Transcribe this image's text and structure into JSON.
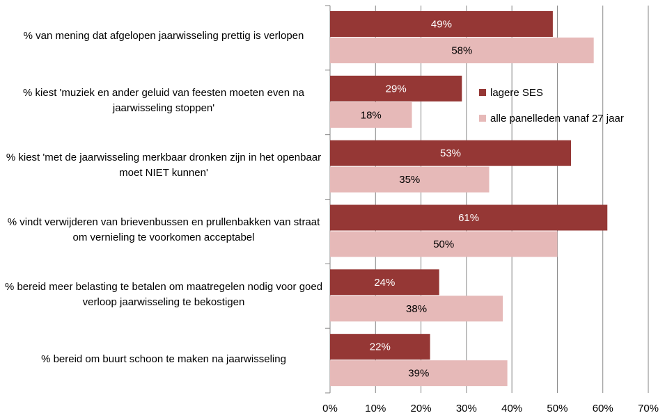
{
  "chart_data": {
    "type": "barh",
    "categories": [
      "% van mening dat afgelopen jaarwisseling prettig is verlopen",
      "% kiest 'muziek en ander geluid van feesten moeten even na jaarwisseling stoppen'",
      "% kiest 'met de jaarwisseling merkbaar dronken zijn in het openbaar moet NIET kunnen'",
      "% vindt verwijderen van brievenbussen en prullenbakken van straat om vernieling te voorkomen acceptabel",
      "% bereid meer belasting te betalen om maatregelen nodig voor goed verloop jaarwisseling te bekostigen",
      "% bereid om buurt schoon te maken na jaarwisseling"
    ],
    "series": [
      {
        "name": "lagere SES",
        "color": "#953735",
        "values": [
          49,
          29,
          53,
          61,
          24,
          22
        ],
        "value_labels": [
          "49%",
          "29%",
          "53%",
          "61%",
          "24%",
          "22%"
        ]
      },
      {
        "name": "alle panelleden vanaf 27 jaar",
        "color": "#e6b9b8",
        "values": [
          58,
          18,
          35,
          50,
          38,
          39
        ],
        "value_labels": [
          "58%",
          "18%",
          "35%",
          "50%",
          "38%",
          "39%"
        ]
      }
    ],
    "xlim": [
      0,
      70
    ],
    "xticks": [
      {
        "value": 0,
        "label": "0%"
      },
      {
        "value": 10,
        "label": "10%"
      },
      {
        "value": 20,
        "label": "20%"
      },
      {
        "value": 30,
        "label": "30%"
      },
      {
        "value": 40,
        "label": "40%"
      },
      {
        "value": 50,
        "label": "50%"
      },
      {
        "value": 60,
        "label": "60%"
      },
      {
        "value": 70,
        "label": "70%"
      }
    ],
    "grid": true
  }
}
